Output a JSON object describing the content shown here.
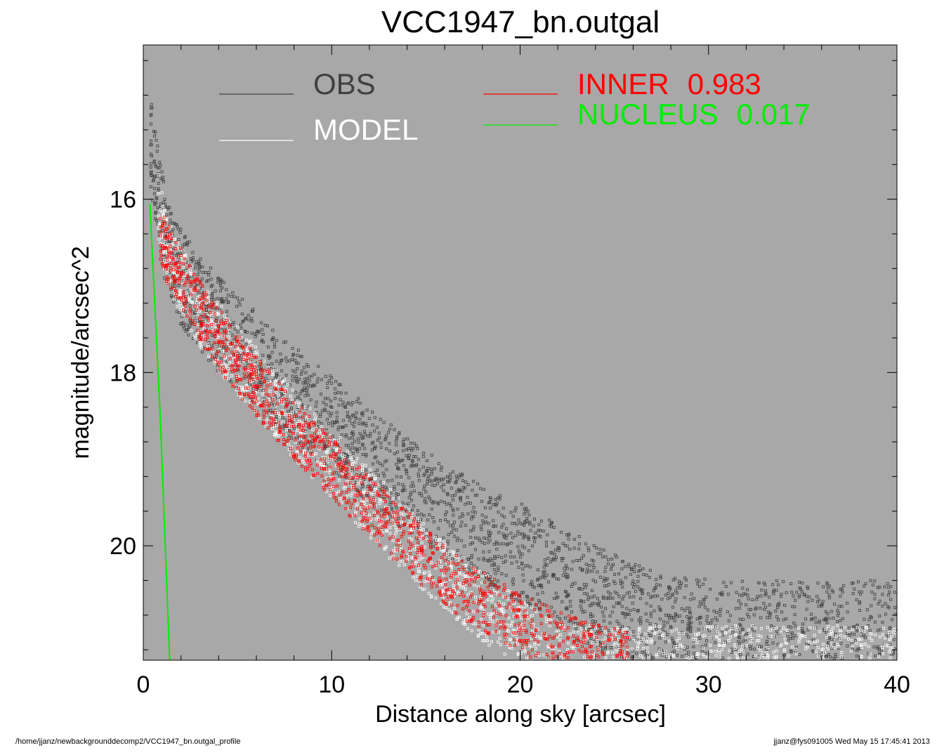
{
  "chart_data": {
    "type": "scatter",
    "title": "VCC1947_bn.outgal",
    "xlabel": "Distance along sky [arcsec]",
    "ylabel": "magnitude/arcsec^2",
    "xlim": [
      0,
      40
    ],
    "ylim": [
      21.32,
      14.22
    ],
    "y_inverted": true,
    "x_ticks": [
      "0",
      "10",
      "20",
      "30",
      "40"
    ],
    "y_ticks": [
      "16",
      "18",
      "20"
    ],
    "background": "#a8a8a8",
    "grid": false,
    "legend": [
      {
        "label": "OBS",
        "value": "",
        "color": "#404040"
      },
      {
        "label": "MODEL",
        "value": "",
        "color": "#ffffff"
      },
      {
        "label": "INNER",
        "value": "0.983",
        "color": "#ff0000"
      },
      {
        "label": "NUCLEUS",
        "value": "0.017",
        "color": "#00ee00"
      }
    ],
    "series": [
      {
        "name": "NUCLEUS",
        "style": "line",
        "color": "#00ee00",
        "x": [
          0.35,
          0.9,
          1.4
        ],
        "y": [
          16.05,
          18.5,
          21.32
        ]
      },
      {
        "name": "OBS",
        "style": "points",
        "color": "#404040",
        "x": [
          0.4,
          0.5,
          0.9,
          1.2,
          2,
          3,
          4,
          5,
          6,
          8,
          10,
          12,
          14,
          16,
          18,
          20,
          22,
          24,
          26,
          28,
          30,
          32,
          34,
          36,
          38,
          40
        ],
        "y": [
          15.4,
          15.5,
          16.05,
          16.5,
          16.9,
          17.2,
          17.45,
          17.65,
          17.85,
          18.25,
          18.6,
          18.95,
          19.3,
          19.6,
          19.85,
          20.1,
          20.35,
          20.6,
          20.8,
          20.95,
          20.98,
          20.99,
          21.0,
          21.0,
          21.0,
          21.0
        ],
        "spread": 0.55
      },
      {
        "name": "MODEL",
        "style": "points",
        "color": "#ffffff",
        "x": [
          0.8,
          1.2,
          2,
          3,
          4,
          5,
          6,
          8,
          10,
          12,
          14,
          16,
          18,
          20,
          22,
          24,
          26,
          28,
          30,
          32,
          34,
          36,
          38,
          40
        ],
        "y": [
          16.1,
          16.55,
          16.95,
          17.3,
          17.6,
          17.85,
          18.1,
          18.6,
          19.05,
          19.5,
          19.95,
          20.35,
          20.7,
          21.0,
          21.3,
          21.32,
          21.32,
          21.32,
          21.32,
          21.32,
          21.32,
          21.32,
          21.32,
          21.32
        ],
        "spread": 0.4
      },
      {
        "name": "INNER",
        "style": "points",
        "color": "#ff0000",
        "x": [
          0.9,
          1.2,
          2,
          3,
          4,
          5,
          6,
          8,
          10,
          12,
          14,
          16,
          18,
          20,
          22,
          24,
          26
        ],
        "y": [
          16.35,
          16.6,
          16.9,
          17.3,
          17.6,
          17.9,
          18.15,
          18.65,
          19.1,
          19.55,
          19.95,
          20.35,
          20.65,
          20.9,
          21.1,
          21.25,
          21.32
        ],
        "spread": 0.35
      }
    ]
  },
  "footer": {
    "left": "/home/jjanz/newbackgrounddecomp2/VCC1947_bn.outgal_profile",
    "right": "jjanz@fys091005  Wed May 15 17:45:41 2013"
  }
}
